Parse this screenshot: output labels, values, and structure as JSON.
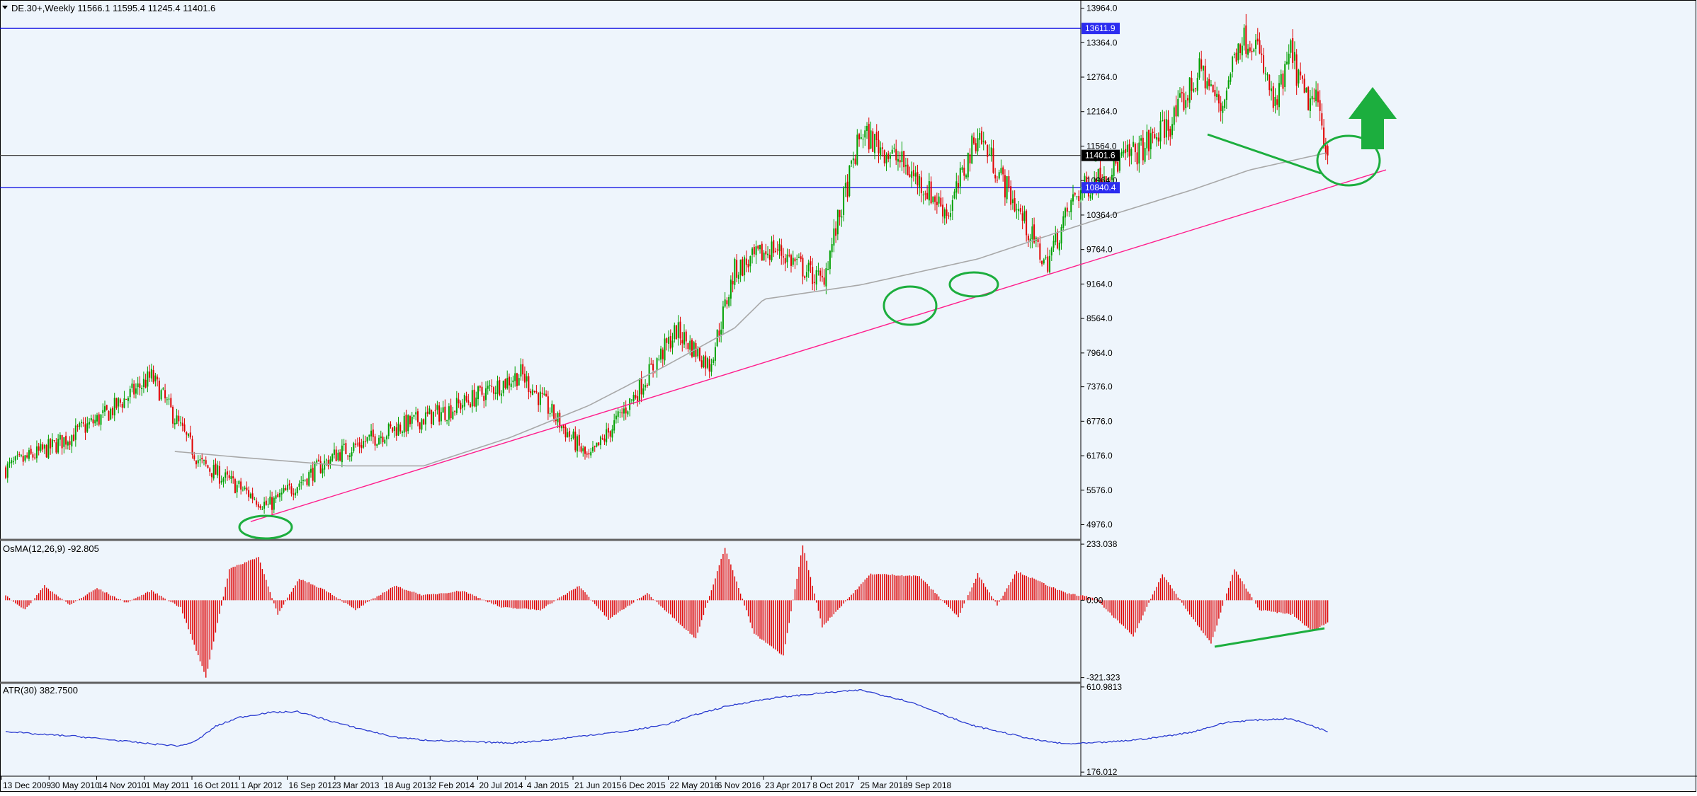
{
  "colors": {
    "background": "#eef5fc",
    "frame": "#000000",
    "text": "#000000",
    "bull": "#00a000",
    "bear": "#e00000",
    "hline": "#0000e0",
    "current_line": "#404040",
    "ma": "#a8a8a8",
    "trend": "#ff1e8c",
    "annot": "#1cae3e",
    "atr": "#2a3bd0",
    "tag_bg": "#2c2cf0",
    "tag_current_bg": "#000000"
  },
  "main": {
    "caption": "DE.30+,Weekly  11566.1 11595.4 11245.4 11401.6",
    "ylim": [
      4724,
      14106
    ],
    "tick_labels": [
      "13964.0",
      "13364.0",
      "12764.0",
      "12164.0",
      "11564.0",
      "10964.0",
      "10364.0",
      "9764.0",
      "9164.0",
      "8564.0",
      "7964.0",
      "7376.0",
      "6776.0",
      "6176.0",
      "5576.0",
      "4976.0"
    ],
    "level_top": "13611.9",
    "level_current": "11401.6",
    "level_bottom": "10840.4"
  },
  "osma": {
    "caption": "OsMA(12,26,9) -92.805",
    "ylim": [
      -340,
      245
    ],
    "tick_labels": [
      "233.038",
      "0.00",
      "-321.323"
    ]
  },
  "atr": {
    "caption": "ATR(30) 382.7500",
    "ylim": [
      155,
      625
    ],
    "tick_labels": [
      "610.9813",
      "176.012"
    ]
  },
  "x_labels": [
    "13 Dec 2009",
    "30 May 2010",
    "14 Nov 2010",
    "1 May 2011",
    "16 Oct 2011",
    "1 Apr 2012",
    "16 Sep 2012",
    "3 Mar 2013",
    "18 Aug 2013",
    "2 Feb 2014",
    "20 Jul 2014",
    "4 Jan 2015",
    "21 Jun 2015",
    "6 Dec 2015",
    "22 May 2016",
    "6 Nov 2016",
    "23 Apr 2017",
    "8 Oct 2017",
    "25 Mar 2018",
    "9 Sep 2018"
  ],
  "chart_data": [
    {
      "type": "candlestick",
      "title": "DE.30+,Weekly",
      "last_bar": {
        "open": 11566.1,
        "high": 11595.4,
        "low": 11245.4,
        "close": 11401.6
      },
      "horizontal_levels": [
        13611.9,
        11401.6,
        10840.4
      ],
      "x_anchor_weeks": [
        0,
        25,
        52,
        75,
        100,
        135,
        170,
        200,
        230,
        265,
        300,
        325,
        345,
        362,
        375,
        395,
        420,
        440,
        460,
        485,
        500,
        520,
        535,
        550,
        575,
        584,
        600,
        615,
        625,
        634,
        642,
        653,
        661,
        668,
        675,
        680
      ],
      "close_anchors": [
        5950,
        6350,
        6900,
        7550,
        6050,
        5300,
        6200,
        6650,
        7000,
        7600,
        6100,
        7300,
        8350,
        7750,
        9400,
        9800,
        9200,
        11800,
        11300,
        10400,
        11800,
        10500,
        9500,
        10700,
        11350,
        11500,
        12000,
        12900,
        12200,
        13400,
        13450,
        12200,
        13200,
        12400,
        12300,
        11401.6
      ],
      "moving_average": {
        "weeks": [
          87,
          120,
          175,
          215,
          260,
          300,
          340,
          375,
          390,
          440,
          500,
          540,
          572,
          610,
          640,
          680
        ],
        "values": [
          6250,
          6150,
          6000,
          6000,
          6500,
          7050,
          7750,
          8400,
          8900,
          9150,
          9600,
          10050,
          10400,
          10800,
          11150,
          11450
        ]
      },
      "trendline": {
        "weeks": [
          126,
          710
        ],
        "values": [
          5030,
          11150
        ]
      },
      "annotation_markers": [
        "ellipse",
        "ellipse",
        "ellipse",
        "ellipse",
        "arrow-up",
        "falling-trendline"
      ]
    },
    {
      "type": "histogram",
      "title": "OsMA(12,26,9)",
      "last_value": -92.805,
      "x_anchor_weeks": [
        0,
        10,
        20,
        33,
        47,
        62,
        75,
        90,
        103,
        115,
        130,
        140,
        151,
        165,
        180,
        200,
        215,
        235,
        255,
        275,
        295,
        310,
        330,
        355,
        370,
        385,
        400,
        410,
        420,
        445,
        470,
        490,
        500,
        510,
        520,
        545,
        560,
        580,
        595,
        610,
        620,
        632,
        645,
        662,
        672,
        680
      ],
      "value_anchors": [
        20,
        -40,
        60,
        -20,
        50,
        -10,
        40,
        -30,
        -320,
        130,
        180,
        -60,
        90,
        40,
        -40,
        60,
        20,
        40,
        -30,
        -40,
        60,
        -80,
        30,
        -160,
        220,
        -140,
        -230,
        230,
        -110,
        110,
        100,
        -70,
        110,
        -20,
        120,
        30,
        10,
        -150,
        110,
        -70,
        -180,
        130,
        -40,
        -60,
        -130,
        -92.805
      ],
      "divergence_line": true
    },
    {
      "type": "line",
      "title": "ATR(30)",
      "last_value": 382.75,
      "x_anchor_weeks": [
        0,
        15,
        35,
        50,
        75,
        90,
        98,
        108,
        120,
        135,
        150,
        175,
        200,
        215,
        240,
        260,
        280,
        300,
        320,
        340,
        355,
        370,
        380,
        395,
        420,
        440,
        455,
        465,
        480,
        495,
        510,
        530,
        545,
        560,
        575,
        590,
        610,
        628,
        640,
        660,
        670,
        680
      ],
      "value_anchors": [
        385,
        370,
        360,
        345,
        320,
        310,
        335,
        410,
        455,
        480,
        485,
        415,
        355,
        340,
        330,
        325,
        340,
        365,
        385,
        420,
        470,
        510,
        530,
        555,
        580,
        595,
        560,
        535,
        480,
        420,
        385,
        340,
        320,
        325,
        335,
        350,
        380,
        430,
        440,
        450,
        420,
        382.75
      ]
    }
  ]
}
